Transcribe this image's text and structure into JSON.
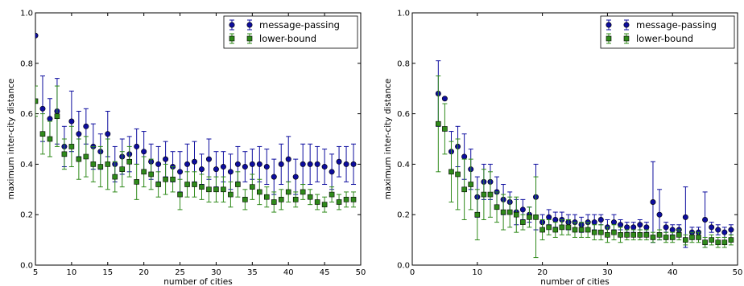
{
  "chart_data": [
    {
      "type": "scatter",
      "xlabel": "number of cities",
      "ylabel": "maximum inter-city distance",
      "xlim": [
        5,
        50
      ],
      "ylim": [
        0.0,
        1.0
      ],
      "xticks": [
        "5",
        "10",
        "15",
        "20",
        "25",
        "30",
        "35",
        "40",
        "45",
        "50"
      ],
      "yticks": [
        "0.0",
        "0.2",
        "0.4",
        "0.6",
        "0.8",
        "1.0"
      ],
      "legend_position": "top-right",
      "grid": false,
      "x": [
        5,
        6,
        7,
        8,
        9,
        10,
        11,
        12,
        13,
        14,
        15,
        16,
        17,
        18,
        19,
        20,
        21,
        22,
        23,
        24,
        25,
        26,
        27,
        28,
        29,
        30,
        31,
        32,
        33,
        34,
        35,
        36,
        37,
        38,
        39,
        40,
        41,
        42,
        43,
        44,
        45,
        46,
        47,
        48,
        49
      ],
      "series": [
        {
          "name": "message-passing",
          "color": "#0d0d9e",
          "marker": "circle",
          "y": [
            0.91,
            0.62,
            0.58,
            0.61,
            0.47,
            0.57,
            0.52,
            0.55,
            0.47,
            0.45,
            0.52,
            0.4,
            0.43,
            0.44,
            0.47,
            0.45,
            0.41,
            0.4,
            0.42,
            0.39,
            0.37,
            0.4,
            0.41,
            0.38,
            0.42,
            0.38,
            0.39,
            0.37,
            0.4,
            0.39,
            0.4,
            0.4,
            0.39,
            0.35,
            0.4,
            0.42,
            0.35,
            0.4,
            0.4,
            0.4,
            0.39,
            0.37,
            0.41,
            0.4,
            0.4
          ],
          "err": [
            0.0,
            0.13,
            0.08,
            0.13,
            0.08,
            0.12,
            0.09,
            0.07,
            0.09,
            0.07,
            0.09,
            0.07,
            0.07,
            0.07,
            0.07,
            0.08,
            0.07,
            0.07,
            0.07,
            0.06,
            0.08,
            0.08,
            0.08,
            0.06,
            0.08,
            0.07,
            0.06,
            0.07,
            0.07,
            0.06,
            0.06,
            0.07,
            0.07,
            0.07,
            0.08,
            0.09,
            0.07,
            0.08,
            0.08,
            0.07,
            0.07,
            0.07,
            0.06,
            0.07,
            0.08
          ]
        },
        {
          "name": "lower-bound",
          "color": "#2f8a1a",
          "marker": "square",
          "y": [
            0.65,
            0.52,
            0.5,
            0.59,
            0.44,
            0.47,
            0.42,
            0.43,
            0.4,
            0.39,
            0.4,
            0.35,
            0.38,
            0.41,
            0.33,
            0.37,
            0.36,
            0.32,
            0.34,
            0.34,
            0.28,
            0.32,
            0.32,
            0.31,
            0.3,
            0.3,
            0.3,
            0.28,
            0.32,
            0.26,
            0.31,
            0.29,
            0.27,
            0.25,
            0.26,
            0.29,
            0.26,
            0.29,
            0.27,
            0.25,
            0.24,
            0.28,
            0.25,
            0.26,
            0.26
          ],
          "err": [
            0.06,
            0.08,
            0.07,
            0.12,
            0.06,
            0.08,
            0.08,
            0.08,
            0.07,
            0.08,
            0.1,
            0.06,
            0.07,
            0.06,
            0.07,
            0.06,
            0.06,
            0.05,
            0.06,
            0.05,
            0.06,
            0.05,
            0.05,
            0.05,
            0.05,
            0.05,
            0.05,
            0.05,
            0.05,
            0.04,
            0.05,
            0.05,
            0.04,
            0.04,
            0.04,
            0.04,
            0.03,
            0.03,
            0.03,
            0.03,
            0.03,
            0.03,
            0.03,
            0.03,
            0.03
          ]
        }
      ]
    },
    {
      "type": "scatter",
      "xlabel": "number of cities",
      "ylabel": "maximum inter-city distance",
      "xlim": [
        0,
        50
      ],
      "ylim": [
        0.0,
        1.0
      ],
      "xticks": [
        "0",
        "10",
        "20",
        "30",
        "40",
        "50"
      ],
      "yticks": [
        "0.0",
        "0.2",
        "0.4",
        "0.6",
        "0.8",
        "1.0"
      ],
      "legend_position": "top-right",
      "grid": false,
      "x": [
        4,
        5,
        6,
        7,
        8,
        9,
        10,
        11,
        12,
        13,
        14,
        15,
        16,
        17,
        18,
        19,
        20,
        21,
        22,
        23,
        24,
        25,
        26,
        27,
        28,
        29,
        30,
        31,
        32,
        33,
        34,
        35,
        36,
        37,
        38,
        39,
        40,
        41,
        42,
        43,
        44,
        45,
        46,
        47,
        48,
        49
      ],
      "series": [
        {
          "name": "message-passing",
          "color": "#0d0d9e",
          "marker": "circle",
          "y": [
            0.68,
            0.66,
            0.45,
            0.47,
            0.43,
            0.38,
            0.27,
            0.33,
            0.33,
            0.29,
            0.26,
            0.25,
            0.21,
            0.22,
            0.2,
            0.27,
            0.17,
            0.19,
            0.18,
            0.18,
            0.17,
            0.17,
            0.16,
            0.17,
            0.17,
            0.18,
            0.15,
            0.17,
            0.16,
            0.15,
            0.15,
            0.16,
            0.15,
            0.25,
            0.2,
            0.15,
            0.14,
            0.14,
            0.19,
            0.13,
            0.13,
            0.18,
            0.15,
            0.14,
            0.13,
            0.14
          ],
          "err": [
            0.13,
            0.0,
            0.08,
            0.08,
            0.09,
            0.08,
            0.08,
            0.07,
            0.07,
            0.06,
            0.06,
            0.04,
            0.05,
            0.04,
            0.03,
            0.13,
            0.03,
            0.03,
            0.03,
            0.03,
            0.03,
            0.03,
            0.03,
            0.03,
            0.03,
            0.02,
            0.03,
            0.03,
            0.02,
            0.02,
            0.02,
            0.02,
            0.02,
            0.16,
            0.1,
            0.02,
            0.02,
            0.02,
            0.12,
            0.02,
            0.02,
            0.11,
            0.02,
            0.02,
            0.02,
            0.02
          ]
        },
        {
          "name": "lower-bound",
          "color": "#2f8a1a",
          "marker": "square",
          "y": [
            0.56,
            0.54,
            0.37,
            0.36,
            0.3,
            0.32,
            0.2,
            0.28,
            0.28,
            0.23,
            0.21,
            0.21,
            0.2,
            0.17,
            0.19,
            0.19,
            0.14,
            0.15,
            0.14,
            0.15,
            0.15,
            0.14,
            0.14,
            0.14,
            0.13,
            0.13,
            0.12,
            0.13,
            0.12,
            0.12,
            0.12,
            0.12,
            0.12,
            0.11,
            0.12,
            0.11,
            0.11,
            0.12,
            0.1,
            0.11,
            0.11,
            0.09,
            0.1,
            0.09,
            0.09,
            0.1
          ],
          "err": [
            0.19,
            0.1,
            0.12,
            0.14,
            0.12,
            0.1,
            0.1,
            0.1,
            0.09,
            0.06,
            0.07,
            0.06,
            0.07,
            0.03,
            0.04,
            0.16,
            0.04,
            0.03,
            0.03,
            0.03,
            0.03,
            0.03,
            0.03,
            0.03,
            0.03,
            0.03,
            0.03,
            0.03,
            0.03,
            0.02,
            0.02,
            0.02,
            0.02,
            0.02,
            0.02,
            0.02,
            0.02,
            0.02,
            0.02,
            0.02,
            0.02,
            0.02,
            0.02,
            0.02,
            0.02,
            0.02
          ]
        }
      ]
    }
  ]
}
